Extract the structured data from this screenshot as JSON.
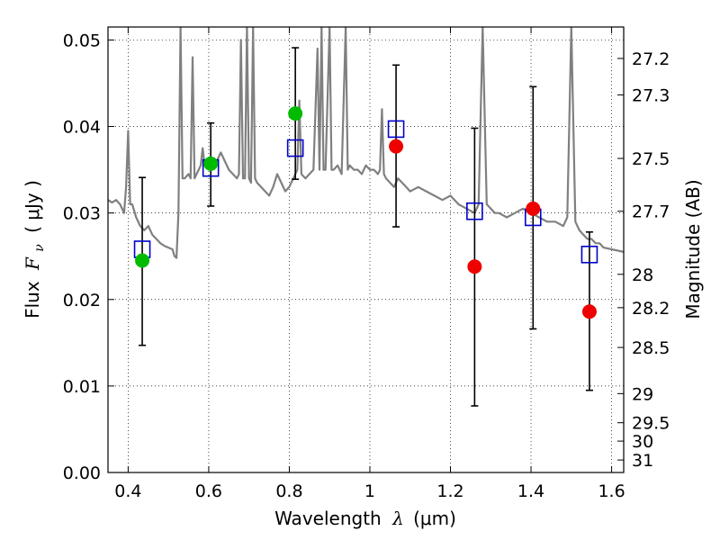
{
  "chart_data": {
    "type": "scatter",
    "xlabel_prefix": "Wavelength",
    "xlabel_symbol": "λ",
    "xlabel_unit": "(μm)",
    "ylabel_prefix": "Flux",
    "ylabel_symbol": "F",
    "ylabel_subscript": "ν",
    "ylabel_unit": "( μJy )",
    "y2label": "Magnitude (AB)",
    "xlim": [
      0.35,
      1.63
    ],
    "ylim": [
      0.0,
      0.0515
    ],
    "grid": true,
    "x_ticks": [
      {
        "value": 0.4,
        "label": "0.4"
      },
      {
        "value": 0.6,
        "label": "0.6"
      },
      {
        "value": 0.8,
        "label": "0.8"
      },
      {
        "value": 1.0,
        "label": "1"
      },
      {
        "value": 1.2,
        "label": "1.2"
      },
      {
        "value": 1.4,
        "label": "1.4"
      },
      {
        "value": 1.6,
        "label": "1.6"
      }
    ],
    "y_ticks": [
      {
        "value": 0.0,
        "label": "0.00"
      },
      {
        "value": 0.01,
        "label": "0.01"
      },
      {
        "value": 0.02,
        "label": "0.02"
      },
      {
        "value": 0.03,
        "label": "0.03"
      },
      {
        "value": 0.04,
        "label": "0.04"
      },
      {
        "value": 0.05,
        "label": "0.05"
      }
    ],
    "mag_ticks": [
      {
        "value": 27.2,
        "label": "27.2"
      },
      {
        "value": 27.3,
        "label": "27.3"
      },
      {
        "value": 27.5,
        "label": "27.5"
      },
      {
        "value": 27.7,
        "label": "27.7"
      },
      {
        "value": 28.0,
        "label": "28"
      },
      {
        "value": 28.2,
        "label": "28.2"
      },
      {
        "value": 28.5,
        "label": "28.5"
      },
      {
        "value": 29.0,
        "label": "29"
      },
      {
        "value": 29.5,
        "label": "29.5"
      },
      {
        "value": 30.0,
        "label": "30"
      },
      {
        "value": 31.0,
        "label": "31"
      }
    ],
    "colors": {
      "spectrum": "#808080",
      "model": "#0000cc",
      "observed_green": "#00bb00",
      "observed_red": "#ee0000",
      "errorbar": "#000000"
    },
    "spectrum": [
      [
        0.35,
        0.0315
      ],
      [
        0.36,
        0.0312
      ],
      [
        0.37,
        0.0315
      ],
      [
        0.38,
        0.031
      ],
      [
        0.39,
        0.03
      ],
      [
        0.395,
        0.033
      ],
      [
        0.4,
        0.0395
      ],
      [
        0.405,
        0.031
      ],
      [
        0.41,
        0.031
      ],
      [
        0.42,
        0.0295
      ],
      [
        0.43,
        0.0285
      ],
      [
        0.44,
        0.028
      ],
      [
        0.45,
        0.0285
      ],
      [
        0.46,
        0.0275
      ],
      [
        0.47,
        0.027
      ],
      [
        0.48,
        0.0265
      ],
      [
        0.49,
        0.0262
      ],
      [
        0.5,
        0.026
      ],
      [
        0.51,
        0.0258
      ],
      [
        0.515,
        0.025
      ],
      [
        0.52,
        0.0248
      ],
      [
        0.525,
        0.03
      ],
      [
        0.53,
        0.0515
      ],
      [
        0.535,
        0.034
      ],
      [
        0.54,
        0.034
      ],
      [
        0.55,
        0.0345
      ],
      [
        0.555,
        0.034
      ],
      [
        0.56,
        0.048
      ],
      [
        0.565,
        0.034
      ],
      [
        0.57,
        0.0345
      ],
      [
        0.58,
        0.0355
      ],
      [
        0.585,
        0.0375
      ],
      [
        0.59,
        0.0355
      ],
      [
        0.6,
        0.036
      ],
      [
        0.61,
        0.0355
      ],
      [
        0.62,
        0.036
      ],
      [
        0.63,
        0.037
      ],
      [
        0.64,
        0.036
      ],
      [
        0.65,
        0.035
      ],
      [
        0.66,
        0.0345
      ],
      [
        0.67,
        0.034
      ],
      [
        0.675,
        0.0345
      ],
      [
        0.68,
        0.05
      ],
      [
        0.685,
        0.034
      ],
      [
        0.69,
        0.034
      ],
      [
        0.695,
        0.0515
      ],
      [
        0.7,
        0.034
      ],
      [
        0.705,
        0.0335
      ],
      [
        0.71,
        0.0515
      ],
      [
        0.715,
        0.034
      ],
      [
        0.72,
        0.0335
      ],
      [
        0.73,
        0.033
      ],
      [
        0.74,
        0.0325
      ],
      [
        0.75,
        0.032
      ],
      [
        0.76,
        0.033
      ],
      [
        0.77,
        0.0345
      ],
      [
        0.78,
        0.0335
      ],
      [
        0.79,
        0.0325
      ],
      [
        0.8,
        0.033
      ],
      [
        0.81,
        0.034
      ],
      [
        0.82,
        0.035
      ],
      [
        0.825,
        0.043
      ],
      [
        0.83,
        0.0345
      ],
      [
        0.84,
        0.034
      ],
      [
        0.85,
        0.0345
      ],
      [
        0.86,
        0.035
      ],
      [
        0.87,
        0.049
      ],
      [
        0.875,
        0.035
      ],
      [
        0.88,
        0.0515
      ],
      [
        0.885,
        0.035
      ],
      [
        0.89,
        0.035
      ],
      [
        0.9,
        0.0515
      ],
      [
        0.905,
        0.035
      ],
      [
        0.91,
        0.035
      ],
      [
        0.92,
        0.0355
      ],
      [
        0.93,
        0.0345
      ],
      [
        0.94,
        0.0515
      ],
      [
        0.945,
        0.035
      ],
      [
        0.95,
        0.0355
      ],
      [
        0.96,
        0.035
      ],
      [
        0.97,
        0.035
      ],
      [
        0.98,
        0.0345
      ],
      [
        0.99,
        0.0355
      ],
      [
        1.0,
        0.035
      ],
      [
        1.01,
        0.035
      ],
      [
        1.02,
        0.0345
      ],
      [
        1.025,
        0.035
      ],
      [
        1.03,
        0.042
      ],
      [
        1.035,
        0.0345
      ],
      [
        1.04,
        0.034
      ],
      [
        1.05,
        0.0335
      ],
      [
        1.06,
        0.033
      ],
      [
        1.07,
        0.034
      ],
      [
        1.08,
        0.0335
      ],
      [
        1.09,
        0.033
      ],
      [
        1.1,
        0.0325
      ],
      [
        1.12,
        0.033
      ],
      [
        1.14,
        0.0325
      ],
      [
        1.16,
        0.032
      ],
      [
        1.18,
        0.0315
      ],
      [
        1.2,
        0.032
      ],
      [
        1.22,
        0.031
      ],
      [
        1.24,
        0.0305
      ],
      [
        1.26,
        0.03
      ],
      [
        1.27,
        0.031
      ],
      [
        1.28,
        0.0515
      ],
      [
        1.29,
        0.031
      ],
      [
        1.3,
        0.0305
      ],
      [
        1.31,
        0.03
      ],
      [
        1.32,
        0.03
      ],
      [
        1.34,
        0.0295
      ],
      [
        1.36,
        0.03
      ],
      [
        1.38,
        0.0305
      ],
      [
        1.4,
        0.03
      ],
      [
        1.42,
        0.0295
      ],
      [
        1.44,
        0.029
      ],
      [
        1.46,
        0.029
      ],
      [
        1.48,
        0.0285
      ],
      [
        1.49,
        0.0295
      ],
      [
        1.5,
        0.0515
      ],
      [
        1.51,
        0.029
      ],
      [
        1.52,
        0.028
      ],
      [
        1.53,
        0.0275
      ],
      [
        1.54,
        0.027
      ],
      [
        1.55,
        0.027
      ],
      [
        1.56,
        0.0265
      ],
      [
        1.57,
        0.0265
      ],
      [
        1.58,
        0.026
      ],
      [
        1.6,
        0.0258
      ],
      [
        1.63,
        0.0255
      ]
    ],
    "model_points": [
      {
        "x": 0.435,
        "y": 0.0258
      },
      {
        "x": 0.605,
        "y": 0.0352
      },
      {
        "x": 0.815,
        "y": 0.0375
      },
      {
        "x": 1.065,
        "y": 0.0397
      },
      {
        "x": 1.26,
        "y": 0.0302
      },
      {
        "x": 1.405,
        "y": 0.0295
      },
      {
        "x": 1.545,
        "y": 0.0252
      }
    ],
    "observed_points": [
      {
        "x": 0.435,
        "y": 0.0245,
        "yerr_low": 0.0147,
        "yerr_high": 0.0341,
        "color": "green"
      },
      {
        "x": 0.605,
        "y": 0.0357,
        "yerr_low": 0.0308,
        "yerr_high": 0.0404,
        "color": "green"
      },
      {
        "x": 0.815,
        "y": 0.0415,
        "yerr_low": 0.0339,
        "yerr_high": 0.0491,
        "color": "green"
      },
      {
        "x": 1.065,
        "y": 0.0377,
        "yerr_low": 0.0284,
        "yerr_high": 0.0471,
        "color": "red"
      },
      {
        "x": 1.26,
        "y": 0.0238,
        "yerr_low": 0.0077,
        "yerr_high": 0.0398,
        "color": "red"
      },
      {
        "x": 1.405,
        "y": 0.0305,
        "yerr_low": 0.0166,
        "yerr_high": 0.0446,
        "color": "red"
      },
      {
        "x": 1.545,
        "y": 0.0186,
        "yerr_low": 0.0095,
        "yerr_high": 0.0278,
        "color": "red"
      }
    ]
  }
}
